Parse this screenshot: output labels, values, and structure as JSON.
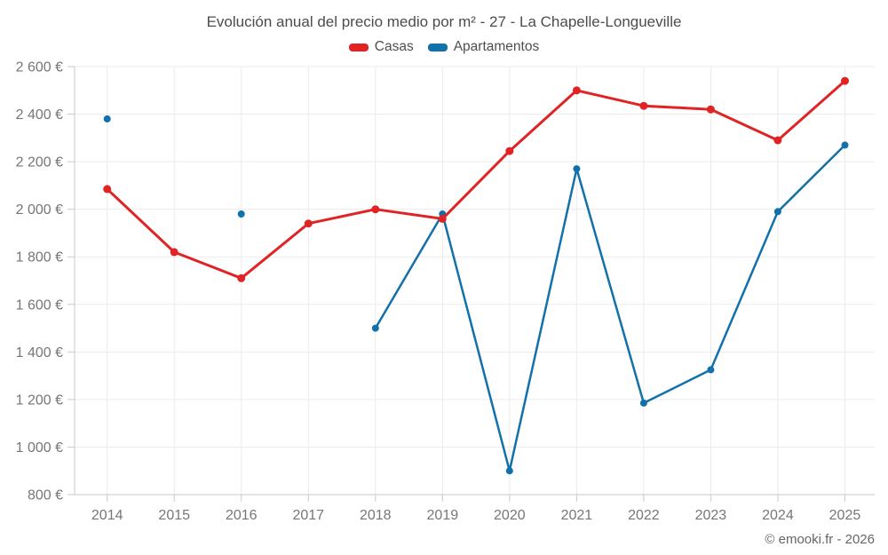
{
  "chart_data": {
    "type": "line",
    "title": "Evolución anual del precio medio por m² - 27 - La Chapelle-Longueville",
    "categories": [
      "2014",
      "2015",
      "2016",
      "2017",
      "2018",
      "2019",
      "2020",
      "2021",
      "2022",
      "2023",
      "2024",
      "2025"
    ],
    "series": [
      {
        "name": "Casas",
        "color": "#e02426",
        "values": [
          2085,
          1820,
          1710,
          1940,
          2000,
          1960,
          2245,
          2500,
          2435,
          2420,
          2290,
          2540
        ]
      },
      {
        "name": "Apartamentos",
        "color": "#1270aa",
        "values": [
          2380,
          null,
          1980,
          null,
          1500,
          1980,
          900,
          2170,
          1185,
          1325,
          1990,
          2270
        ]
      }
    ],
    "ylim": [
      800,
      2600
    ],
    "ytick_step": 200,
    "ytick_labels": [
      "800 €",
      "1 000 €",
      "1 200 €",
      "1 400 €",
      "1 600 €",
      "1 800 €",
      "2 000 €",
      "2 200 €",
      "2 400 €",
      "2 600 €"
    ],
    "grid": true,
    "legend_position": "top"
  },
  "colors": {
    "grid": "#ebebeb",
    "axis": "#c9c9c9",
    "tick_label": "#767676",
    "title_text": "#4c4c4c",
    "footer_text": "#666666"
  },
  "footer": {
    "credit": "© emooki.fr - 2026"
  }
}
